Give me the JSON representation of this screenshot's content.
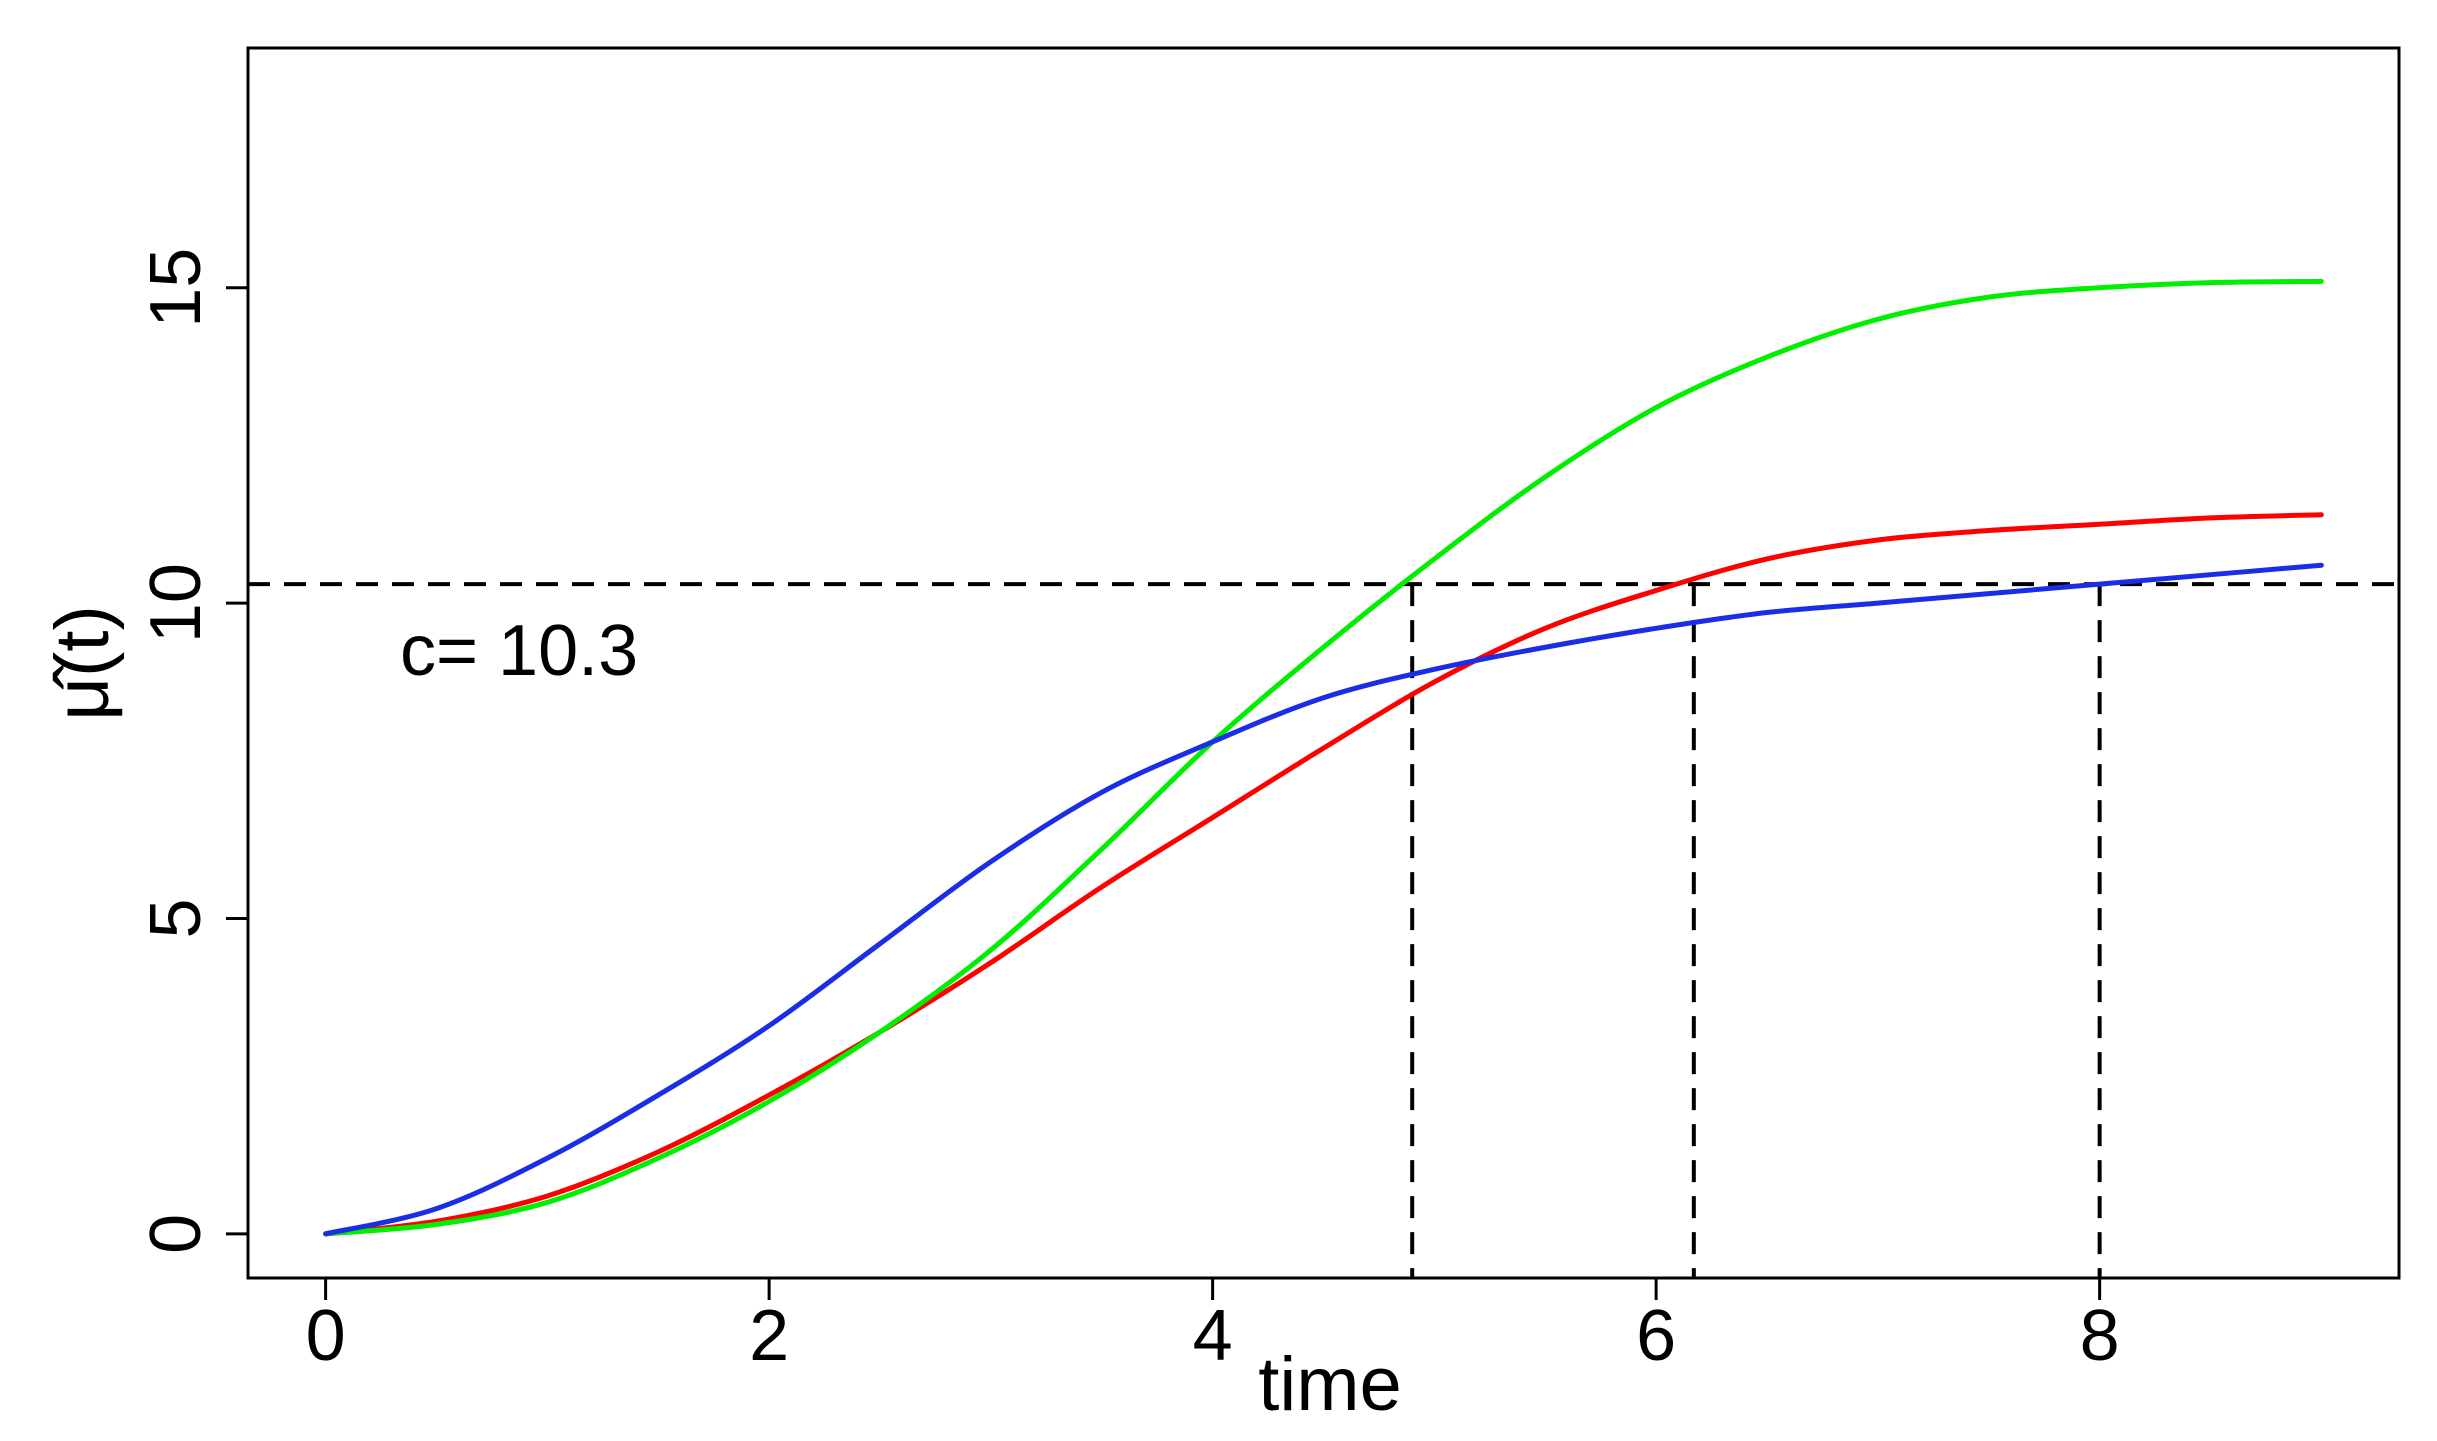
{
  "chart_data": {
    "type": "line",
    "xlabel": "time",
    "ylabel": "μ̂(t)",
    "xlim": [
      -0.35,
      9.35
    ],
    "ylim": [
      -0.7,
      18.8
    ],
    "x_ticks": [
      0,
      2,
      4,
      6,
      8
    ],
    "y_ticks": [
      0,
      5,
      10,
      15
    ],
    "grid": false,
    "annotation": "c= 10.3",
    "threshold": 10.3,
    "crossing_times": [
      4.9,
      6.17,
      8.0
    ],
    "series": [
      {
        "color": "#ff0000",
        "x": [
          0,
          0.5,
          1,
          1.5,
          2,
          2.5,
          3,
          3.5,
          4,
          4.5,
          5,
          5.5,
          6,
          6.5,
          7,
          7.5,
          8,
          8.5,
          9
        ],
        "values": [
          0,
          0.2,
          0.6,
          1.3,
          2.2,
          3.2,
          4.3,
          5.5,
          6.6,
          7.7,
          8.75,
          9.6,
          10.2,
          10.7,
          11.0,
          11.15,
          11.25,
          11.35,
          11.4
        ]
      },
      {
        "color": "#00ee00",
        "x": [
          0,
          0.5,
          1,
          1.5,
          2,
          2.5,
          3,
          3.5,
          4,
          4.5,
          5,
          5.5,
          6,
          6.5,
          7,
          7.5,
          8,
          8.5,
          9
        ],
        "values": [
          0,
          0.15,
          0.5,
          1.2,
          2.1,
          3.2,
          4.5,
          6.1,
          7.8,
          9.3,
          10.7,
          12.0,
          13.1,
          13.9,
          14.5,
          14.85,
          15.0,
          15.08,
          15.1
        ]
      },
      {
        "color": "#1a2ee8",
        "x": [
          0,
          0.5,
          1,
          1.5,
          2,
          2.5,
          3,
          3.5,
          4,
          4.5,
          5,
          5.5,
          6,
          6.5,
          7,
          7.5,
          8,
          8.5,
          9
        ],
        "values": [
          0,
          0.4,
          1.2,
          2.2,
          3.3,
          4.6,
          5.9,
          7.0,
          7.8,
          8.5,
          8.95,
          9.3,
          9.6,
          9.85,
          10.0,
          10.15,
          10.3,
          10.45,
          10.6
        ]
      }
    ]
  }
}
